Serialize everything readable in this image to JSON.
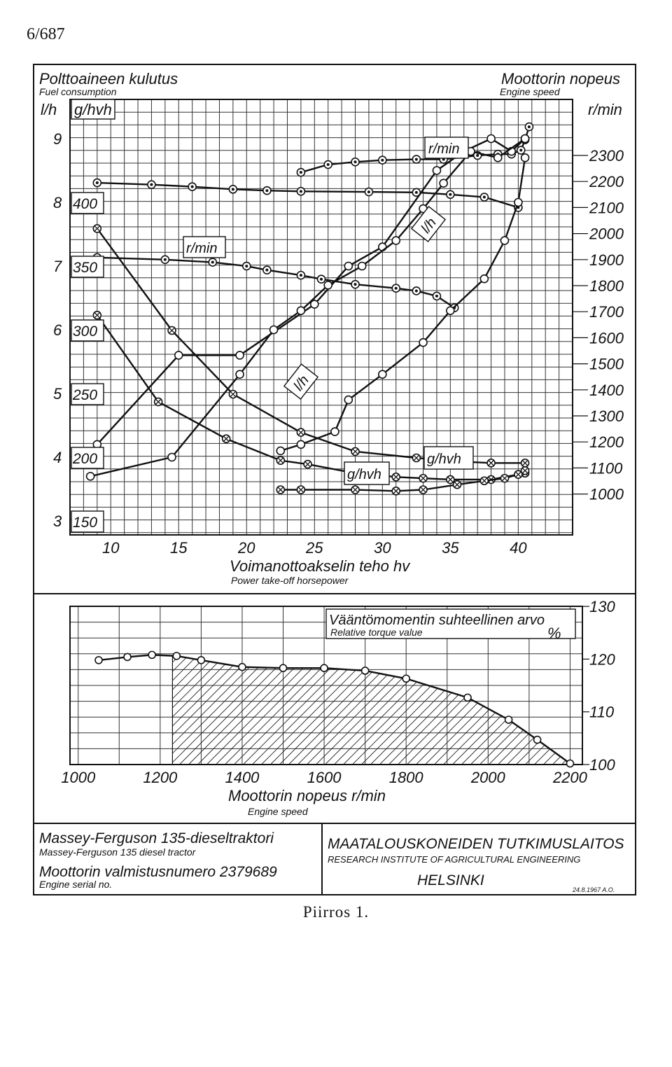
{
  "page_number": "6/687",
  "caption": "Piirros 1.",
  "main_chart": {
    "title_fi": "Polttoaineen kulutus",
    "title_en": "Fuel consumption",
    "left_unit_lh": "l/h",
    "left_unit_g": "g/hvh",
    "right_title_fi": "Moottorin nopeus",
    "right_title_en": "Engine speed",
    "right_unit": "r/min",
    "xlabel_fi": "Voimanottoakselin teho hv",
    "xlabel_en": "Power take-off horsepower",
    "curve_labels": {
      "rmin_upper": "r/min",
      "rmin_lower": "r/min",
      "lh_upper": "l/h",
      "lh_lower": "l/h",
      "g_upper": "g/hvh",
      "g_lower": "g/hvh"
    }
  },
  "torque_chart": {
    "title_fi": "Vääntömomentin suhteellinen arvo",
    "title_en": "Relative torque value",
    "unit": "%",
    "xlabel_fi": "Moottorin nopeus r/min",
    "xlabel_en": "Engine speed"
  },
  "footer": {
    "tractor_fi": "Massey-Ferguson 135-dieseltraktori",
    "tractor_en": "Massey-Ferguson 135 diesel tractor",
    "serial_fi": "Moottorin valmistusnumero 2379689",
    "serial_en": "Engine serial no.",
    "institute_fi": "MAATALOUSKONEIDEN TUTKIMUSLAITOS",
    "institute_en": "RESEARCH INSTITUTE OF AGRICULTURAL ENGINEERING",
    "city": "HELSINKI",
    "date": "24.8.1967 A.O."
  },
  "chart_data": [
    {
      "type": "line",
      "x_range": [
        7,
        44
      ],
      "x_ticks": [
        10,
        15,
        20,
        25,
        30,
        35,
        40
      ],
      "y_left_lh_ticks": [
        3,
        4,
        5,
        6,
        7,
        8,
        9
      ],
      "y_left_g_ticks": [
        150,
        200,
        250,
        300,
        350,
        400
      ],
      "y_right_rmin_ticks": [
        1000,
        1100,
        1200,
        1300,
        1400,
        1500,
        1600,
        1700,
        1800,
        1900,
        2000,
        2100,
        2200,
        2300
      ],
      "series": [
        {
          "group": "r/min",
          "axis": "rmin",
          "x": [
            9.0,
            13.0,
            16.0,
            19.0,
            21.5,
            24.0,
            29.0,
            32.5,
            35.0,
            37.5,
            40.0
          ],
          "y": [
            2195,
            2188,
            2180,
            2170,
            2165,
            2162,
            2160,
            2158,
            2150,
            2140,
            2100
          ]
        },
        {
          "group": "r/min",
          "axis": "rmin",
          "x": [
            9.0,
            14.0,
            17.5,
            20.0,
            21.5,
            24.0,
            25.5,
            28.0,
            31.0,
            32.5,
            34.0,
            35.3
          ],
          "y": [
            1908,
            1900,
            1890,
            1875,
            1860,
            1840,
            1825,
            1805,
            1790,
            1780,
            1760,
            1715
          ]
        },
        {
          "group": "r/min",
          "axis": "rmin",
          "x": [
            24.0,
            26.0,
            28.0,
            30.0,
            32.5,
            34.5,
            37.0,
            38.5,
            39.5,
            40.2,
            40.5,
            40.8
          ],
          "y": [
            2235,
            2265,
            2275,
            2282,
            2285,
            2285,
            2300,
            2305,
            2305,
            2320,
            2360,
            2410
          ]
        },
        {
          "group": "l/h",
          "axis": "lh",
          "x": [
            9.0,
            15.0,
            19.5,
            25.0,
            27.5,
            30.0,
            34.0,
            36.0,
            38.0,
            39.5,
            40.5
          ],
          "y": [
            4.2,
            5.6,
            5.6,
            6.4,
            7.0,
            7.3,
            8.5,
            8.8,
            9.0,
            8.8,
            9.0
          ]
        },
        {
          "group": "l/h",
          "axis": "lh",
          "x": [
            8.5,
            14.5,
            19.5,
            22.0,
            24.0,
            26.0,
            28.5,
            31.0,
            33.0,
            34.5,
            36.5,
            38.5,
            40.5
          ],
          "y": [
            3.7,
            4.0,
            5.3,
            6.0,
            6.3,
            6.7,
            7.0,
            7.4,
            7.9,
            8.3,
            8.8,
            8.7,
            9.0
          ]
        },
        {
          "group": "l/h",
          "axis": "lh",
          "x": [
            22.5,
            24.0,
            26.5,
            27.5,
            30.0,
            33.0,
            35.0,
            37.5,
            39.0,
            40.0,
            40.5
          ],
          "y": [
            4.1,
            4.2,
            4.4,
            4.9,
            5.3,
            5.8,
            6.3,
            6.8,
            7.4,
            8.0,
            8.7
          ]
        },
        {
          "group": "g/hvh",
          "axis": "g",
          "x": [
            9.0,
            14.5,
            19.0,
            24.0,
            28.0,
            32.5,
            36.0,
            38.0,
            40.5
          ],
          "y": [
            380,
            300,
            250,
            220,
            205,
            200,
            197,
            196,
            196
          ]
        },
        {
          "group": "g/hvh",
          "axis": "g",
          "x": [
            9.0,
            13.5,
            18.5,
            22.5,
            24.5,
            27.5,
            31.0,
            33.0,
            35.0,
            38.0,
            40.5
          ],
          "y": [
            312,
            244,
            215,
            198,
            195,
            189,
            185,
            184,
            183,
            183,
            188
          ]
        },
        {
          "group": "g/hvh",
          "axis": "g",
          "x": [
            22.5,
            24.0,
            28.0,
            31.0,
            33.0,
            35.5,
            37.5,
            39.0,
            40.0,
            40.5
          ],
          "y": [
            175,
            175,
            175,
            174,
            175,
            179,
            182,
            184,
            187,
            190
          ]
        }
      ]
    },
    {
      "type": "line",
      "x_range": [
        980,
        2230
      ],
      "x_ticks": [
        1000,
        1200,
        1400,
        1600,
        1800,
        2000,
        2200
      ],
      "y_range": [
        100,
        130
      ],
      "y_ticks": [
        100,
        110,
        120,
        130
      ],
      "series": [
        {
          "x": [
            1050,
            1120,
            1180,
            1240,
            1300,
            1400,
            1500,
            1600,
            1700,
            1800,
            1950,
            2050,
            2120,
            2200
          ],
          "y": [
            119.8,
            120.4,
            120.8,
            120.6,
            119.8,
            118.5,
            118.3,
            118.3,
            117.8,
            116.3,
            112.7,
            108.5,
            104.7,
            100.2
          ]
        }
      ],
      "shaded_region_from_rmin": 1230
    }
  ]
}
